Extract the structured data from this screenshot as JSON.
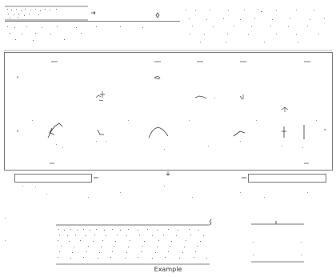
{
  "figure": {
    "caption": "Example"
  },
  "colors": {
    "ink": "#333333",
    "faint": "#9a9a9a",
    "frame": "#555555",
    "background": "#ffffff"
  },
  "icons": [
    "handle-icon",
    "marker-icon",
    "arrow-icon"
  ]
}
